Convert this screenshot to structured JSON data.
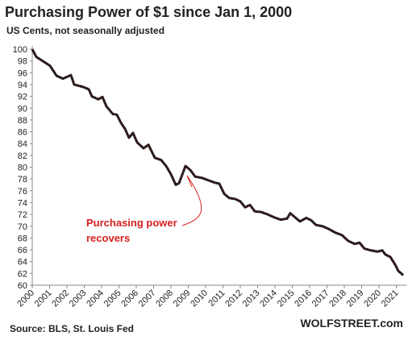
{
  "chart_data": {
    "type": "line",
    "title": "Purchasing  Power of $1 since Jan 1, 2000",
    "subtitle": "US Cents, not seasonally adjusted",
    "source": "Source: BLS, St. Louis Fed",
    "brand": "WOLFSTREET.com",
    "annotation": [
      "Purchasing power",
      "recovers"
    ],
    "x": [
      2000.0,
      2000.23,
      2000.7,
      2001.02,
      2001.4,
      2001.77,
      2002.23,
      2002.42,
      2002.93,
      2003.26,
      2003.44,
      2003.81,
      2004.05,
      2004.28,
      2004.65,
      2004.88,
      2005.12,
      2005.35,
      2005.58,
      2005.81,
      2006.05,
      2006.42,
      2006.7,
      2007.07,
      2007.44,
      2007.72,
      2008.0,
      2008.28,
      2008.47,
      2008.84,
      2009.12,
      2009.4,
      2009.77,
      2010.14,
      2010.51,
      2010.79,
      2011.07,
      2011.35,
      2011.72,
      2012.0,
      2012.28,
      2012.56,
      2012.84,
      2013.21,
      2013.58,
      2013.95,
      2014.33,
      2014.7,
      2014.88,
      2015.16,
      2015.44,
      2015.81,
      2016.09,
      2016.37,
      2016.74,
      2017.12,
      2017.49,
      2017.86,
      2018.23,
      2018.6,
      2018.88,
      2019.16,
      2019.53,
      2019.91,
      2020.19,
      2020.37,
      2020.65,
      2020.93,
      2021.12,
      2021.4
    ],
    "series": [
      {
        "name": "Purchasing power",
        "color": "#1a1a1a",
        "values": [
          100,
          98.7,
          97.8,
          97.2,
          95.5,
          95,
          95.6,
          94,
          93.6,
          93.2,
          92,
          91.5,
          91.9,
          90.3,
          89,
          88.9,
          87.5,
          86.5,
          85,
          85.8,
          84.2,
          83.2,
          83.8,
          81.6,
          81.2,
          80.2,
          78.8,
          77,
          77.3,
          80.2,
          79.5,
          78.4,
          78.2,
          77.8,
          77.4,
          77.2,
          75.5,
          74.8,
          74.6,
          74.2,
          73.2,
          73.6,
          72.5,
          72.4,
          72,
          71.5,
          71.1,
          71.3,
          72.2,
          71.5,
          70.8,
          71.4,
          71,
          70.2,
          70,
          69.5,
          68.9,
          68.5,
          67.5,
          67,
          67.2,
          66.2,
          65.9,
          65.7,
          65.9,
          65.2,
          64.8,
          63.5,
          62.4,
          61.7
        ]
      }
    ],
    "xlim": [
      2000,
      2021.6
    ],
    "xticks": [
      2000,
      2001,
      2002,
      2003,
      2004,
      2005,
      2006,
      2007,
      2008,
      2009,
      2010,
      2011,
      2012,
      2013,
      2014,
      2015,
      2016,
      2017,
      2018,
      2019,
      2020,
      2021
    ],
    "ylim": [
      60,
      100
    ],
    "yticks": [
      60,
      62,
      64,
      66,
      68,
      70,
      72,
      74,
      76,
      78,
      80,
      82,
      84,
      86,
      88,
      90,
      92,
      94,
      96,
      98,
      100
    ],
    "annotation_color": "#d62020",
    "grid": false
  }
}
